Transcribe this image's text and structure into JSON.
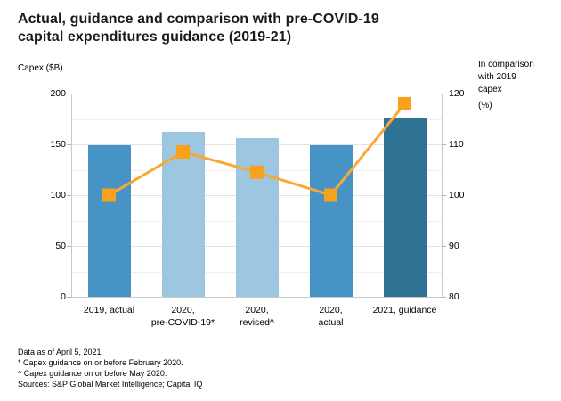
{
  "header": {
    "title_line1": "Actual, guidance and comparison with pre-COVID-19",
    "title_line2": "capital expenditures guidance (2019-21)"
  },
  "axes": {
    "left_title": "Capex ($B)",
    "right_title_lines": [
      "In comparison",
      "with 2019",
      "capex",
      "(%)"
    ]
  },
  "footnotes": [
    "Data as of April 5, 2021.",
    "* Capex guidance on or before February 2020.",
    "^ Capex guidance on or before May 2020.",
    "Sources: S&P Global Market Intelligence; Capital IQ"
  ],
  "colors": {
    "bar_medium_blue": "#4793C6",
    "bar_light_blue": "#9DC7E0",
    "bar_dark_blue": "#2F7394",
    "line_orange": "#FAA834",
    "marker_orange": "#F7A11C",
    "axis_line": "#c9c9c9",
    "gridline_major": "#e3e3e3",
    "gridline_minor": "#efefef"
  },
  "chart_data": {
    "type": "bar",
    "title": "Actual, guidance and comparison with pre-COVID-19 capital expenditures guidance (2019-21)",
    "categories": [
      [
        "2019, actual"
      ],
      [
        "2020,",
        "pre-COVID-19*"
      ],
      [
        "2020,",
        "revised^"
      ],
      [
        "2020,",
        "actual"
      ],
      [
        "2021, guidance"
      ]
    ],
    "series": [
      {
        "name": "Capex ($B)",
        "type": "bar",
        "axis": "left",
        "values": [
          149,
          162,
          156,
          149,
          176
        ],
        "bar_colors": [
          "#4793C6",
          "#9DC7E0",
          "#9DC7E0",
          "#4793C6",
          "#2F7394"
        ]
      },
      {
        "name": "In comparison with 2019 capex (%)",
        "type": "line",
        "axis": "right",
        "values": [
          100,
          108.5,
          104.5,
          100,
          118
        ],
        "color": "#FAA834",
        "marker": "square",
        "marker_color": "#F7A11C"
      }
    ],
    "left_axis": {
      "title": "Capex ($B)",
      "min": 0,
      "max": 200,
      "ticks": [
        200,
        150,
        100,
        50,
        0
      ]
    },
    "right_axis": {
      "title": "In comparison with 2019 capex (%)",
      "min": 80,
      "max": 120,
      "ticks": [
        120,
        110,
        100,
        90,
        80
      ]
    },
    "grid": {
      "minor_step_right_units": 5,
      "major_step_right_units": 10,
      "grid_on": true
    },
    "legend": "none"
  }
}
